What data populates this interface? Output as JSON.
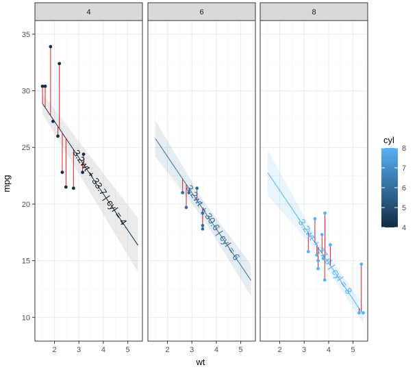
{
  "chart_data": {
    "type": "scatter",
    "xlabel": "wt",
    "ylabel": "mpg",
    "xlim": [
      1.2,
      5.6
    ],
    "ylim": [
      7.9,
      36.2
    ],
    "x_ticks": [
      2,
      3,
      4,
      5
    ],
    "y_ticks": [
      10,
      15,
      20,
      25,
      30,
      35
    ],
    "grid": true,
    "panels": [
      {
        "strip": "4",
        "cyl": 4,
        "equation": "-3.2wt + 33.7 | cyl = 4",
        "line": {
          "slope": -3.2,
          "intercept": 33.7,
          "x_range": [
            1.51,
            5.42
          ]
        },
        "ribbon_halfwidth": [
          0.9,
          1.6,
          2.4
        ],
        "points": [
          {
            "x": 1.51,
            "y": 30.4,
            "fit": 28.87
          },
          {
            "x": 1.62,
            "y": 30.4,
            "fit": 28.52
          },
          {
            "x": 1.84,
            "y": 33.9,
            "fit": 27.81
          },
          {
            "x": 1.94,
            "y": 27.3,
            "fit": 27.49
          },
          {
            "x": 2.14,
            "y": 26.0,
            "fit": 26.85
          },
          {
            "x": 2.2,
            "y": 32.4,
            "fit": 26.66
          },
          {
            "x": 2.32,
            "y": 22.8,
            "fit": 26.28
          },
          {
            "x": 2.47,
            "y": 21.5,
            "fit": 25.8
          },
          {
            "x": 2.78,
            "y": 21.4,
            "fit": 24.8
          },
          {
            "x": 3.15,
            "y": 22.8,
            "fit": 23.62
          },
          {
            "x": 3.19,
            "y": 24.4,
            "fit": 23.49
          }
        ]
      },
      {
        "strip": "6",
        "cyl": 6,
        "equation": "-3.2wt + 30.6 | cyl = 6",
        "line": {
          "slope": -3.2,
          "intercept": 30.6,
          "x_range": [
            1.51,
            5.42
          ]
        },
        "ribbon_halfwidth": [
          1.6,
          0.8,
          1.4
        ],
        "points": [
          {
            "x": 2.62,
            "y": 21.0,
            "fit": 22.22
          },
          {
            "x": 2.77,
            "y": 19.7,
            "fit": 21.74
          },
          {
            "x": 2.88,
            "y": 21.0,
            "fit": 21.38
          },
          {
            "x": 3.21,
            "y": 21.4,
            "fit": 20.33
          },
          {
            "x": 3.44,
            "y": 18.1,
            "fit": 19.6
          },
          {
            "x": 3.44,
            "y": 19.2,
            "fit": 19.6
          },
          {
            "x": 3.44,
            "y": 17.8,
            "fit": 19.6
          }
        ]
      },
      {
        "strip": "8",
        "cyl": 8,
        "equation": "-3.2wt + 27.6 | cyl = 8",
        "line": {
          "slope": -3.2,
          "intercept": 27.6,
          "x_range": [
            1.51,
            5.42
          ]
        },
        "ribbon_halfwidth": [
          2.0,
          0.6,
          0.8
        ],
        "points": [
          {
            "x": 3.17,
            "y": 15.8,
            "fit": 17.46
          },
          {
            "x": 3.44,
            "y": 18.7,
            "fit": 16.59
          },
          {
            "x": 3.52,
            "y": 15.5,
            "fit": 16.34
          },
          {
            "x": 3.57,
            "y": 14.3,
            "fit": 16.18
          },
          {
            "x": 3.57,
            "y": 15.0,
            "fit": 16.18
          },
          {
            "x": 3.73,
            "y": 17.3,
            "fit": 15.66
          },
          {
            "x": 3.78,
            "y": 15.2,
            "fit": 15.5
          },
          {
            "x": 3.84,
            "y": 13.3,
            "fit": 15.31
          },
          {
            "x": 3.85,
            "y": 19.2,
            "fit": 15.28
          },
          {
            "x": 4.07,
            "y": 16.4,
            "fit": 14.58
          },
          {
            "x": 5.25,
            "y": 10.4,
            "fit": 10.8
          },
          {
            "x": 5.34,
            "y": 14.7,
            "fit": 10.51
          },
          {
            "x": 5.42,
            "y": 10.4,
            "fit": 10.26
          }
        ]
      }
    ],
    "legend": {
      "title": "cyl",
      "ticks": [
        4,
        5,
        6,
        7,
        8
      ],
      "range": [
        4,
        8
      ],
      "color_low": "#132B43",
      "color_high": "#56B1F7",
      "placement": "right"
    },
    "colors": {
      "residual": "#e31a1c",
      "ribbon": "#b0b6bd"
    }
  }
}
